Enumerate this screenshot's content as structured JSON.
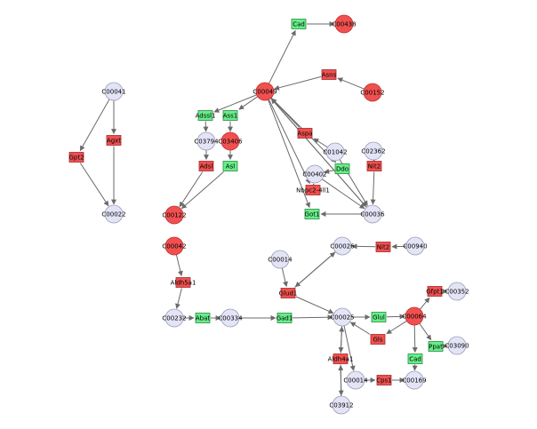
{
  "colors": {
    "compound_fill": "#e4e4f7",
    "compound_stroke": "#9a9ab8",
    "highlight_fill": "#f05050",
    "highlight_stroke": "#c03030",
    "enzyme_green_fill": "#66ee88",
    "enzyme_green_stroke": "#2a8a44",
    "enzyme_red_fill": "#ef5050",
    "enzyme_red_stroke": "#a52a2a",
    "edge": "#6a6a6a"
  },
  "nodes": [
    {
      "id": "c00041",
      "label": "C00041",
      "kind": "compound",
      "highlight": false
    },
    {
      "id": "agxt",
      "label": "Agxt",
      "kind": "enzyme",
      "color": "red"
    },
    {
      "id": "gpt2",
      "label": "Gpt2",
      "kind": "enzyme",
      "color": "red"
    },
    {
      "id": "c00022",
      "label": "C00022",
      "kind": "compound",
      "highlight": false
    },
    {
      "id": "cad_top",
      "label": "Cad",
      "kind": "enzyme",
      "color": "green"
    },
    {
      "id": "c00438",
      "label": "C00438",
      "kind": "compound",
      "highlight": true
    },
    {
      "id": "asns",
      "label": "Asns",
      "kind": "enzyme",
      "color": "red"
    },
    {
      "id": "c00152",
      "label": "C00152",
      "kind": "compound",
      "highlight": true
    },
    {
      "id": "c00049",
      "label": "C00049",
      "kind": "compound",
      "highlight": true
    },
    {
      "id": "adssl1",
      "label": "Adssl1",
      "kind": "enzyme",
      "color": "green"
    },
    {
      "id": "ass1",
      "label": "Ass1",
      "kind": "enzyme",
      "color": "green"
    },
    {
      "id": "c03794",
      "label": "C03794",
      "kind": "compound",
      "highlight": false
    },
    {
      "id": "c03406",
      "label": "C03406",
      "kind": "compound",
      "highlight": true
    },
    {
      "id": "adsl",
      "label": "Adsl",
      "kind": "enzyme",
      "color": "red"
    },
    {
      "id": "asl",
      "label": "Asl",
      "kind": "enzyme",
      "color": "green"
    },
    {
      "id": "c00122",
      "label": "C00122",
      "kind": "compound",
      "highlight": true
    },
    {
      "id": "aspa",
      "label": "Aspa",
      "kind": "enzyme",
      "color": "red"
    },
    {
      "id": "c01042",
      "label": "C01042",
      "kind": "compound",
      "highlight": false
    },
    {
      "id": "c02362",
      "label": "C02362",
      "kind": "compound",
      "highlight": false
    },
    {
      "id": "c00402",
      "label": "C00402",
      "kind": "compound",
      "highlight": false
    },
    {
      "id": "ddo",
      "label": "Ddo",
      "kind": "enzyme",
      "color": "green"
    },
    {
      "id": "nit2",
      "label": "Nit2",
      "kind": "enzyme",
      "color": "red"
    },
    {
      "id": "nbpc",
      "label": "Nbpc2-4ll1",
      "kind": "enzyme",
      "color": "red"
    },
    {
      "id": "got1",
      "label": "Got1",
      "kind": "enzyme",
      "color": "green"
    },
    {
      "id": "c00036",
      "label": "C00036",
      "kind": "compound",
      "highlight": false
    },
    {
      "id": "c00042",
      "label": "C00042",
      "kind": "compound",
      "highlight": true
    },
    {
      "id": "aldh5a1",
      "label": "Aldh5a1",
      "kind": "enzyme",
      "color": "red"
    },
    {
      "id": "c00232",
      "label": "C00232",
      "kind": "compound",
      "highlight": false
    },
    {
      "id": "abat",
      "label": "Abat",
      "kind": "enzyme",
      "color": "green"
    },
    {
      "id": "c00334",
      "label": "C00334",
      "kind": "compound",
      "highlight": false
    },
    {
      "id": "gad1",
      "label": "Gad1",
      "kind": "enzyme",
      "color": "green"
    },
    {
      "id": "c00014a",
      "label": "C00014",
      "kind": "compound",
      "highlight": false
    },
    {
      "id": "glud1",
      "label": "Glud1",
      "kind": "enzyme",
      "color": "red"
    },
    {
      "id": "c00026",
      "label": "C00026",
      "kind": "compound",
      "highlight": false
    },
    {
      "id": "nit2b",
      "label": "Nit2",
      "kind": "enzyme",
      "color": "red"
    },
    {
      "id": "c00940",
      "label": "C00940",
      "kind": "compound",
      "highlight": false
    },
    {
      "id": "c00025",
      "label": "C00025",
      "kind": "compound",
      "highlight": false
    },
    {
      "id": "glul",
      "label": "Glul",
      "kind": "enzyme",
      "color": "green"
    },
    {
      "id": "c00064",
      "label": "C00064",
      "kind": "compound",
      "highlight": true
    },
    {
      "id": "gfpt1",
      "label": "Gfpt1",
      "kind": "enzyme",
      "color": "red"
    },
    {
      "id": "c00352",
      "label": "C00352",
      "kind": "compound",
      "highlight": false
    },
    {
      "id": "ppat",
      "label": "Ppat",
      "kind": "enzyme",
      "color": "green"
    },
    {
      "id": "c03090",
      "label": "C03090",
      "kind": "compound",
      "highlight": false
    },
    {
      "id": "gls",
      "label": "Gls",
      "kind": "enzyme",
      "color": "red"
    },
    {
      "id": "cad_bot",
      "label": "Cad",
      "kind": "enzyme",
      "color": "green"
    },
    {
      "id": "aldh4a1",
      "label": "Aldh4a1",
      "kind": "enzyme",
      "color": "red"
    },
    {
      "id": "c00014b",
      "label": "C00014",
      "kind": "compound",
      "highlight": false
    },
    {
      "id": "cps1",
      "label": "Cps1",
      "kind": "enzyme",
      "color": "red"
    },
    {
      "id": "c00169",
      "label": "C00169",
      "kind": "compound",
      "highlight": false
    },
    {
      "id": "c03912",
      "label": "C03912",
      "kind": "compound",
      "highlight": false
    }
  ],
  "edges": [
    [
      "c00041",
      "agxt"
    ],
    [
      "agxt",
      "c00022"
    ],
    [
      "c00041",
      "gpt2"
    ],
    [
      "gpt2",
      "c00022"
    ],
    [
      "cad_top",
      "c00438"
    ],
    [
      "c00049",
      "cad_top"
    ],
    [
      "asns",
      "c00049"
    ],
    [
      "c00152",
      "asns"
    ],
    [
      "c00049",
      "adssl1"
    ],
    [
      "c00049",
      "ass1"
    ],
    [
      "adssl1",
      "c03794"
    ],
    [
      "ass1",
      "c03406"
    ],
    [
      "c03794",
      "adsl"
    ],
    [
      "c03406",
      "asl"
    ],
    [
      "adsl",
      "c00122"
    ],
    [
      "asl",
      "c00122"
    ],
    [
      "aspa",
      "c00049"
    ],
    [
      "c01042",
      "aspa"
    ],
    [
      "c00049",
      "ddo"
    ],
    [
      "ddo",
      "c00402"
    ],
    [
      "c00049",
      "nbpc"
    ],
    [
      "nbpc",
      "c00402"
    ],
    [
      "c00049",
      "got1"
    ],
    [
      "c00036",
      "got1"
    ],
    [
      "c00049",
      "c00036"
    ],
    [
      "c00036",
      "c00049"
    ],
    [
      "c01042",
      "c00036"
    ],
    [
      "c02362",
      "nit2"
    ],
    [
      "nit2",
      "c00036"
    ],
    [
      "c00402",
      "c00036"
    ],
    [
      "c00042",
      "aldh5a1"
    ],
    [
      "aldh5a1",
      "c00232"
    ],
    [
      "c00232",
      "abat"
    ],
    [
      "abat",
      "c00334"
    ],
    [
      "c00334",
      "gad1"
    ],
    [
      "gad1",
      "c00025"
    ],
    [
      "c00014a",
      "glud1"
    ],
    [
      "glud1",
      "c00026"
    ],
    [
      "c00026",
      "glud1"
    ],
    [
      "glud1",
      "c00025"
    ],
    [
      "c00940",
      "nit2b"
    ],
    [
      "nit2b",
      "c00026"
    ],
    [
      "c00025",
      "glul"
    ],
    [
      "glul",
      "c00064"
    ],
    [
      "c00064",
      "gfpt1"
    ],
    [
      "gfpt1",
      "c00352"
    ],
    [
      "c00064",
      "ppat"
    ],
    [
      "ppat",
      "c03090"
    ],
    [
      "c00064",
      "gls"
    ],
    [
      "gls",
      "c00025"
    ],
    [
      "c00064",
      "cad_bot"
    ],
    [
      "cad_bot",
      "c00169"
    ],
    [
      "c00025",
      "aldh4a1"
    ],
    [
      "aldh4a1",
      "c00025"
    ],
    [
      "aldh4a1",
      "c03912"
    ],
    [
      "c03912",
      "aldh4a1"
    ],
    [
      "c00014b",
      "cps1"
    ],
    [
      "cps1",
      "c00169"
    ],
    [
      "c00025",
      "c00014b"
    ]
  ]
}
